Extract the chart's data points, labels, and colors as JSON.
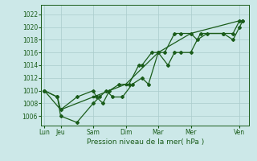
{
  "background_color": "#cce8e8",
  "grid_color": "#aacccc",
  "line_color": "#1a5c1a",
  "marker_color": "#1a5c1a",
  "xlabel": "Pression niveau de la mer( hPa )",
  "ylim": [
    1004.5,
    1023.5
  ],
  "yticks": [
    1006,
    1008,
    1010,
    1012,
    1014,
    1016,
    1018,
    1020,
    1022
  ],
  "x_labels": [
    "Lun",
    "Jeu",
    "Sam",
    "Dim",
    "Mar",
    "Mer",
    "Ven"
  ],
  "x_positions": [
    0,
    0.5,
    1.5,
    2.5,
    3.5,
    4.5,
    6.0
  ],
  "xlim": [
    -0.1,
    6.3
  ],
  "series1_x": [
    0.0,
    0.4,
    0.5,
    1.0,
    1.5,
    1.6,
    1.8,
    2.0,
    2.3,
    2.6,
    2.9,
    3.0,
    3.3,
    3.5,
    3.8,
    4.0,
    4.2,
    4.5,
    4.8,
    5.5,
    5.8,
    6.0,
    6.1
  ],
  "series1_y": [
    1010,
    1009,
    1007,
    1009,
    1010,
    1009,
    1008,
    1010,
    1011,
    1011,
    1014,
    1014,
    1016,
    1016,
    1014,
    1016,
    1016,
    1016,
    1019,
    1019,
    1018,
    1020,
    1021
  ],
  "series2_x": [
    0.0,
    0.4,
    0.5,
    1.0,
    1.5,
    1.7,
    1.9,
    2.1,
    2.4,
    2.7,
    3.0,
    3.2,
    3.5,
    3.7,
    4.0,
    4.2,
    4.5,
    4.7,
    5.0,
    5.5,
    5.8,
    6.0,
    6.1
  ],
  "series2_y": [
    1010,
    1009,
    1006,
    1005,
    1008,
    1009,
    1010,
    1009,
    1009,
    1011,
    1012,
    1011,
    1016,
    1016,
    1019,
    1019,
    1019,
    1018,
    1019,
    1019,
    1019,
    1021,
    1021
  ],
  "series3_x": [
    0.0,
    0.5,
    1.5,
    2.5,
    3.5,
    4.5,
    6.0
  ],
  "series3_y": [
    1010,
    1007,
    1009,
    1011,
    1016,
    1019,
    1021
  ]
}
